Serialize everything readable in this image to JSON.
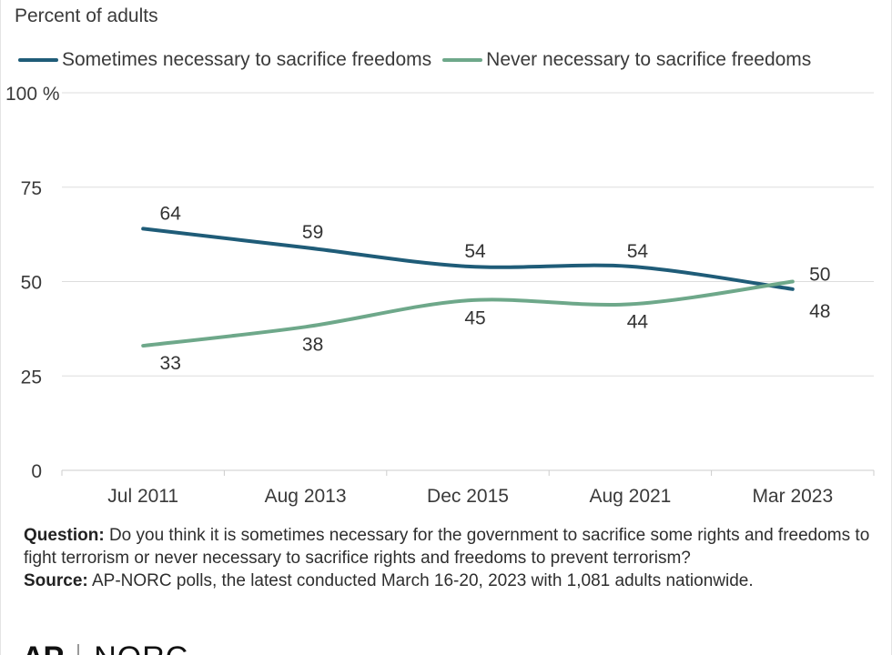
{
  "chart_data": {
    "type": "line",
    "subtitle": "Percent of adults",
    "categories": [
      "Jul 2011",
      "Aug 2013",
      "Dec 2015",
      "Aug 2021",
      "Mar 2023"
    ],
    "series": [
      {
        "name": "Sometimes necessary to sacrifice freedoms",
        "values": [
          64,
          59,
          54,
          54,
          48
        ],
        "color": "#1f5c78"
      },
      {
        "name": "Never necessary to sacrifice freedoms",
        "values": [
          33,
          38,
          45,
          44,
          50
        ],
        "color": "#6ea88a"
      }
    ],
    "ylim": [
      0,
      100
    ],
    "yticks": [
      0,
      25,
      50,
      75,
      100
    ],
    "ytick_labels": [
      "0",
      "25",
      "50",
      "75",
      "100 %"
    ],
    "grid": true,
    "legend_position": "top-left"
  },
  "notes": {
    "question_label": "Question:",
    "question_text": " Do you think it is sometimes necessary for the government to sacrifice some rights and freedoms to fight terrorism or never necessary to sacrifice rights and freedoms to prevent terrorism?",
    "source_label": "Source:",
    "source_text": "  AP-NORC polls, the latest conducted March 16-20, 2023 with 1,081 adults nationwide."
  },
  "logo": {
    "ap": "AP",
    "norc": "NORC"
  }
}
